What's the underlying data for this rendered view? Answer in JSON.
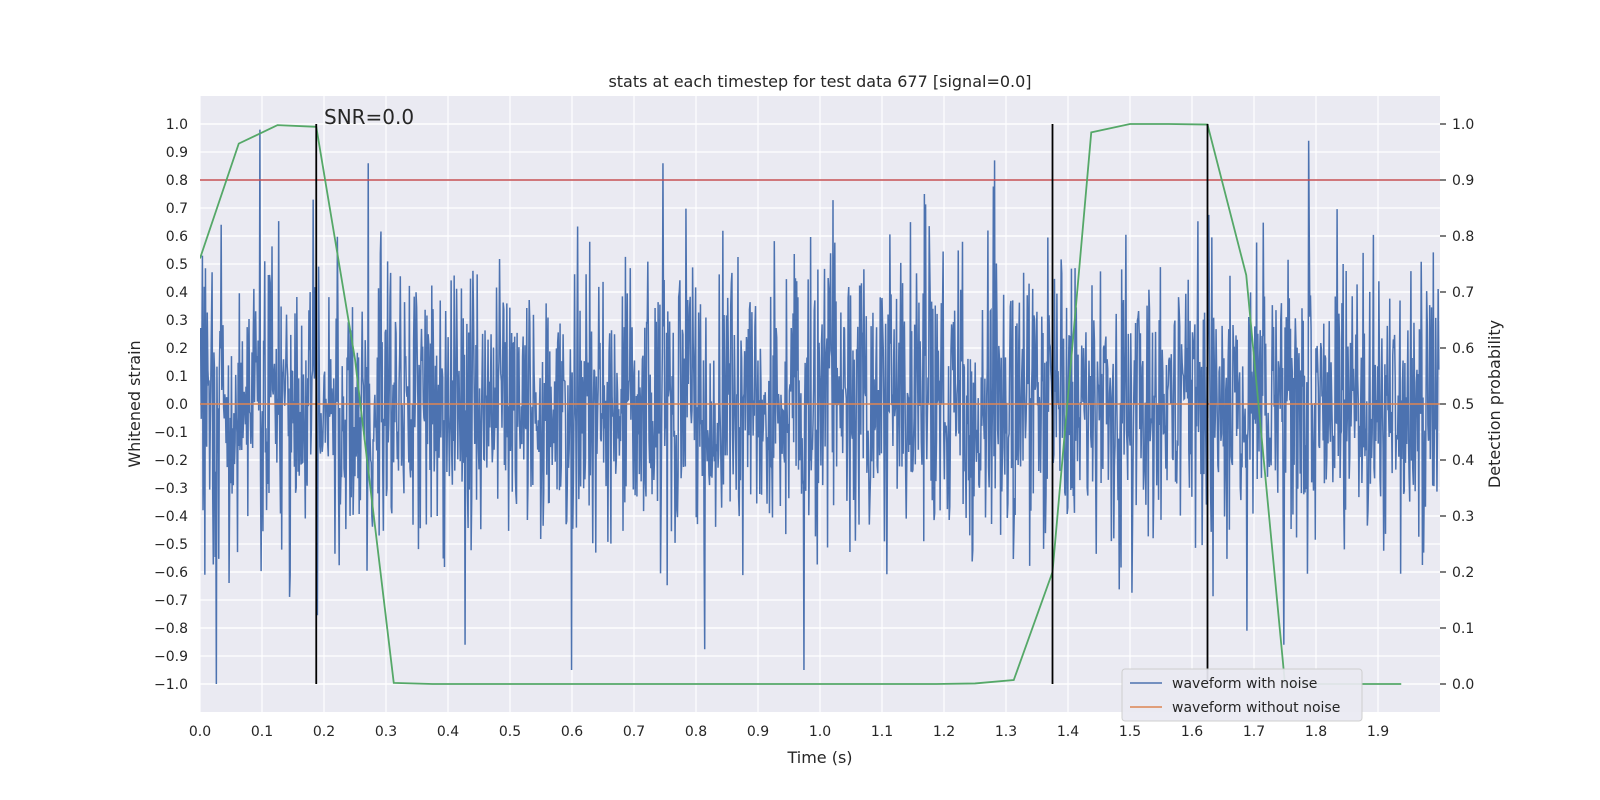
{
  "chart_data": {
    "type": "line",
    "title": "stats at each timestep for test data 677 [signal=0.0]",
    "xlabel": "Time (s)",
    "ylabel": "Whitened strain",
    "y2label": "Detection probability",
    "xlim": [
      0.0,
      2.0
    ],
    "ylim": [
      -1.1,
      1.1
    ],
    "y2lim": [
      -0.05,
      1.05
    ],
    "grid": true,
    "xticks": [
      0.0,
      0.1,
      0.2,
      0.3,
      0.4,
      0.5,
      0.6,
      0.7,
      0.8,
      0.9,
      1.0,
      1.1,
      1.2,
      1.3,
      1.4,
      1.5,
      1.6,
      1.7,
      1.8,
      1.9
    ],
    "xtick_labels": [
      "0.0",
      "0.1",
      "0.2",
      "0.3",
      "0.4",
      "0.5",
      "0.6",
      "0.7",
      "0.8",
      "0.9",
      "1.0",
      "1.1",
      "1.2",
      "1.3",
      "1.4",
      "1.5",
      "1.6",
      "1.7",
      "1.8",
      "1.9"
    ],
    "yticks": [
      -1.0,
      -0.9,
      -0.8,
      -0.7,
      -0.6,
      -0.5,
      -0.4,
      -0.3,
      -0.2,
      -0.1,
      0.0,
      0.1,
      0.2,
      0.3,
      0.4,
      0.5,
      0.6,
      0.7,
      0.8,
      0.9,
      1.0
    ],
    "ytick_labels": [
      "−1.0",
      "−0.9",
      "−0.8",
      "−0.7",
      "−0.6",
      "−0.5",
      "−0.4",
      "−0.3",
      "−0.2",
      "−0.1",
      "0.0",
      "0.1",
      "0.2",
      "0.3",
      "0.4",
      "0.5",
      "0.6",
      "0.7",
      "0.8",
      "0.9",
      "1.0"
    ],
    "y2ticks": [
      0.0,
      0.1,
      0.2,
      0.3,
      0.4,
      0.5,
      0.6,
      0.7,
      0.8,
      0.9,
      1.0
    ],
    "y2tick_labels": [
      "0.0",
      "0.1",
      "0.2",
      "0.3",
      "0.4",
      "0.5",
      "0.6",
      "0.7",
      "0.8",
      "0.9",
      "1.0"
    ],
    "series": [
      {
        "name": "waveform with noise",
        "color": "#4c72b0",
        "axis": "left",
        "generated": {
          "description_values": "noisy whitened strain, ~2048 samples over 0-2 s",
          "n": 2048,
          "std": 0.26,
          "min": -1.0,
          "max": 0.98,
          "spikes": [
            {
              "x": 0.004,
              "y": 0.53
            },
            {
              "x": 0.008,
              "y": -0.61
            },
            {
              "x": 0.026,
              "y": -1.0
            },
            {
              "x": 0.034,
              "y": 0.64
            },
            {
              "x": 0.097,
              "y": 0.98
            },
            {
              "x": 0.132,
              "y": -0.52
            },
            {
              "x": 0.183,
              "y": 0.73
            },
            {
              "x": 0.272,
              "y": 0.86
            },
            {
              "x": 0.383,
              "y": -0.4
            },
            {
              "x": 0.428,
              "y": -0.86
            },
            {
              "x": 0.6,
              "y": -0.95
            },
            {
              "x": 0.747,
              "y": 0.86
            },
            {
              "x": 0.975,
              "y": -0.95
            },
            {
              "x": 1.17,
              "y": 0.75
            },
            {
              "x": 1.283,
              "y": 0.87
            },
            {
              "x": 1.69,
              "y": -0.81
            },
            {
              "x": 1.79,
              "y": 0.94
            },
            {
              "x": 1.75,
              "y": -0.86
            }
          ]
        }
      },
      {
        "name": "waveform without noise",
        "color": "#dd8452",
        "axis": "left",
        "x": [
          0.0,
          2.0
        ],
        "values": [
          0.0,
          0.0
        ]
      },
      {
        "name": "detection probability",
        "color": "#55a868",
        "axis": "right",
        "x": [
          0.0,
          0.0625,
          0.125,
          0.1875,
          0.25,
          0.3125,
          0.375,
          0.4375,
          0.5,
          0.5625,
          0.625,
          0.6875,
          0.75,
          0.8125,
          0.875,
          0.9375,
          1.0,
          1.0625,
          1.125,
          1.1875,
          1.25,
          1.3125,
          1.375,
          1.4375,
          1.5,
          1.5625,
          1.625,
          1.6875,
          1.75,
          1.8125,
          1.875,
          1.9375
        ],
        "values": [
          0.76,
          0.965,
          0.998,
          0.995,
          0.58,
          0.002,
          0.0,
          0.0,
          0.0,
          0.0,
          0.0,
          0.0,
          0.0,
          0.0,
          0.0,
          0.0,
          0.0,
          0.0,
          0.0,
          0.0,
          0.001,
          0.007,
          0.2,
          0.985,
          1.0,
          1.0,
          0.999,
          0.73,
          0.0,
          0.0,
          0.0,
          0.0
        ]
      }
    ],
    "threshold_line": {
      "y2": 0.9,
      "color": "#c44e52"
    },
    "vertical_lines": [
      {
        "x": 0.1875,
        "y_from": -1.0,
        "y_to": 1.0,
        "color": "#000000"
      },
      {
        "x": 1.375,
        "y_from": -1.0,
        "y_to": 1.0,
        "color": "#000000"
      },
      {
        "x": 1.625,
        "y_from": -1.0,
        "y_to": 1.0,
        "color": "#000000"
      }
    ],
    "annotations": [
      {
        "text": "SNR=0.0",
        "x": 0.2,
        "y": 1.0
      }
    ],
    "legend": {
      "position": "lower-right",
      "entries": [
        {
          "label": "waveform with noise",
          "color": "#4c72b0"
        },
        {
          "label": "waveform without noise",
          "color": "#dd8452"
        }
      ]
    }
  }
}
